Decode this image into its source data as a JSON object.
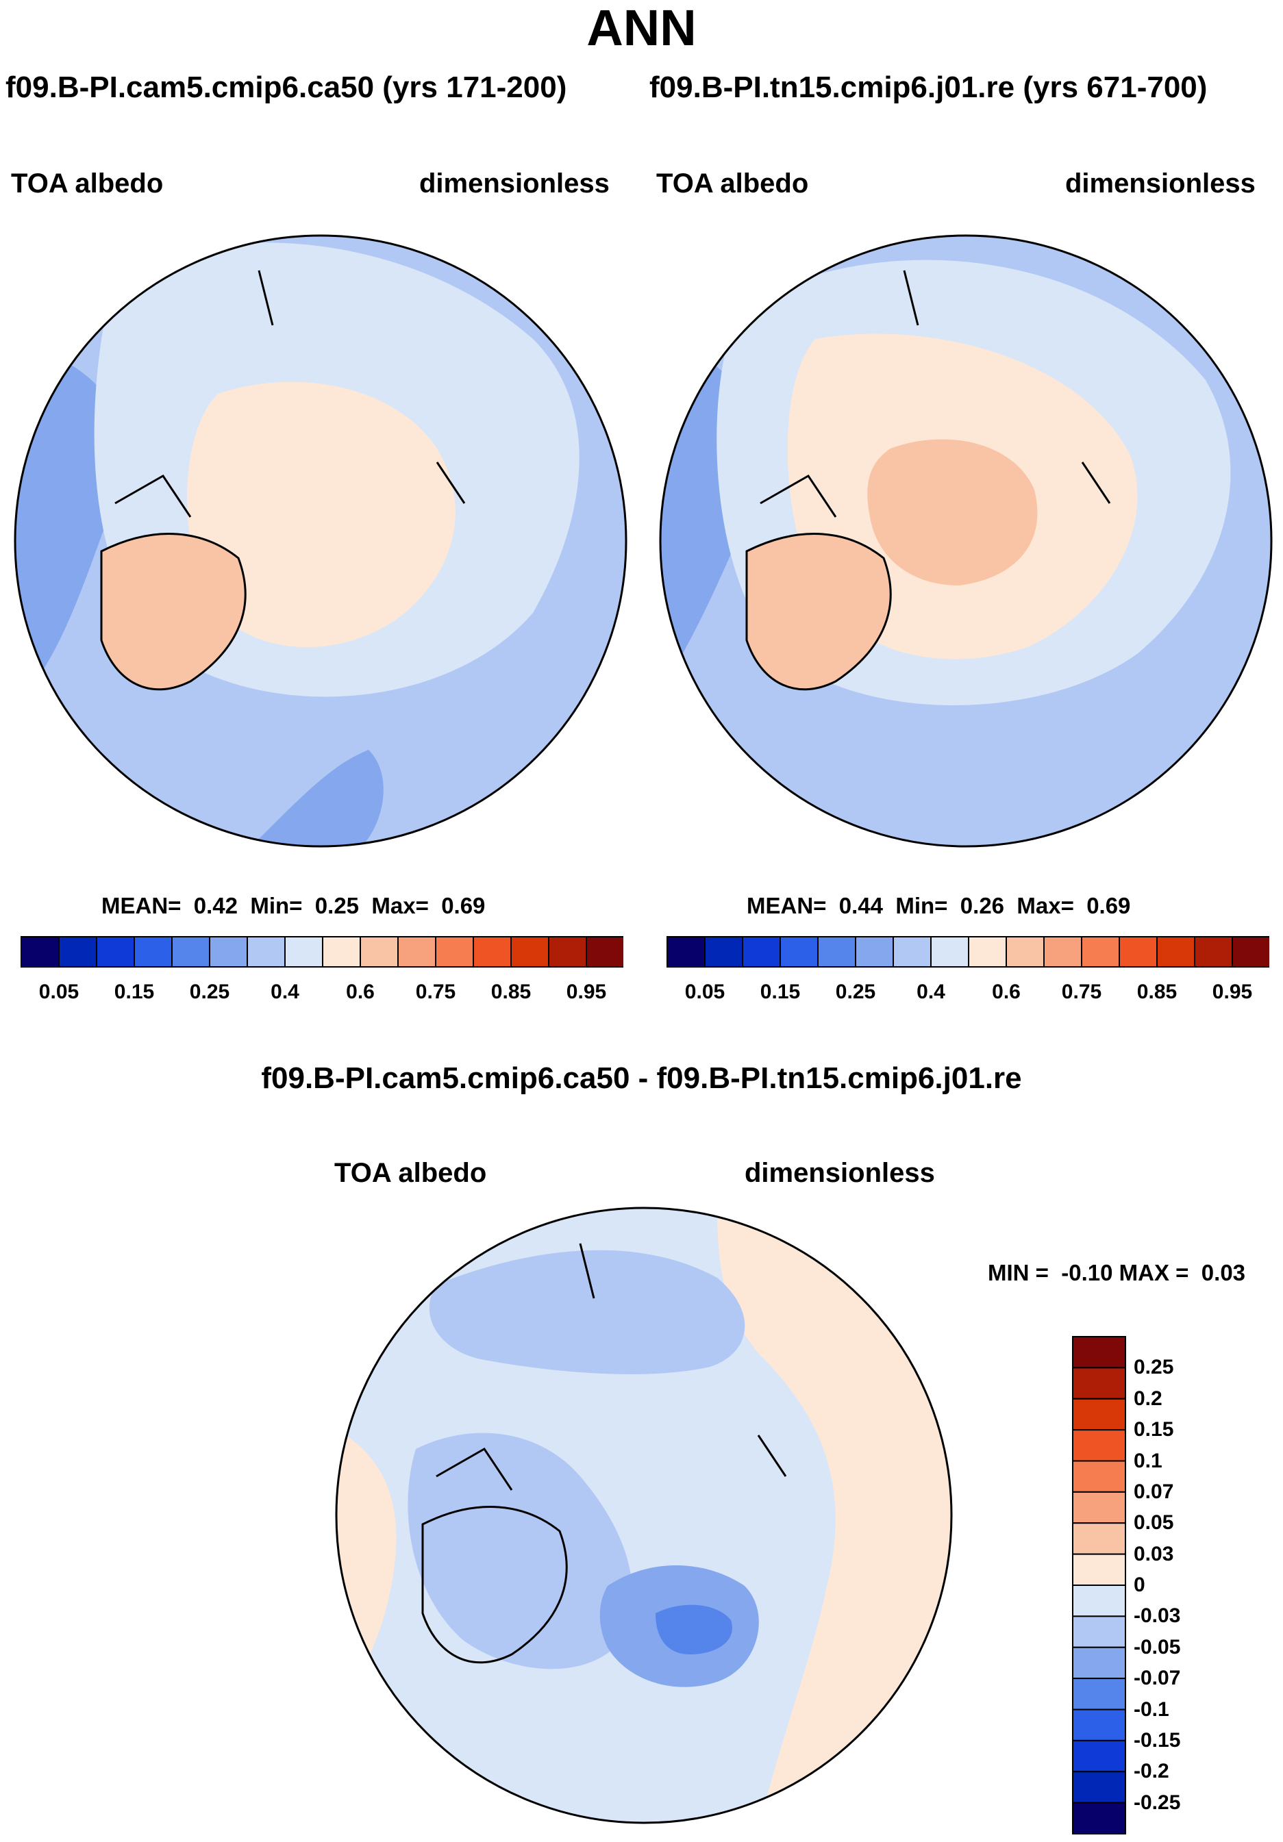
{
  "chart_data": [
    {
      "type": "contour-map",
      "projection": "north-polar-stereographic",
      "case_title": "f09.B-PI.cam5.cmip6.ca50 (yrs 171-200)",
      "left_label": "TOA albedo",
      "right_label": "dimensionless",
      "stats": {
        "mean_label": "MEAN=",
        "mean": "0.42",
        "min_label": "Min=",
        "min": "0.25",
        "max_label": "Max=",
        "max": "0.69"
      },
      "colorbar_ticks": [
        "0.05",
        "0.15",
        "0.25",
        "0.4",
        "0.6",
        "0.75",
        "0.85",
        "0.95"
      ]
    },
    {
      "type": "contour-map",
      "projection": "north-polar-stereographic",
      "case_title": "f09.B-PI.tn15.cmip6.j01.re (yrs 671-700)",
      "left_label": "TOA albedo",
      "right_label": "dimensionless",
      "stats": {
        "mean_label": "MEAN=",
        "mean": "0.44",
        "min_label": "Min=",
        "min": "0.26",
        "max_label": "Max=",
        "max": "0.69"
      },
      "colorbar_ticks": [
        "0.05",
        "0.15",
        "0.25",
        "0.4",
        "0.6",
        "0.75",
        "0.85",
        "0.95"
      ]
    },
    {
      "type": "contour-map",
      "projection": "north-polar-stereographic",
      "case_title": "f09.B-PI.cam5.cmip6.ca50 - f09.B-PI.tn15.cmip6.j01.re",
      "left_label": "TOA albedo",
      "right_label": "dimensionless",
      "stats": {
        "min_label": "MIN =",
        "min": "-0.10",
        "max_label": "MAX =",
        "max": "0.03"
      },
      "colorbar_ticks": [
        "0.25",
        "0.2",
        "0.15",
        "0.1",
        "0.07",
        "0.05",
        "0.03",
        "0",
        "-0.03",
        "-0.05",
        "-0.07",
        "-0.1",
        "-0.15",
        "-0.2",
        "-0.25"
      ]
    }
  ],
  "title": "ANN",
  "palettes": {
    "abs": [
      "#08006a",
      "#0027b6",
      "#0f3ad8",
      "#2d60e8",
      "#5585ea",
      "#84a7ee",
      "#b2c8f4",
      "#d8e6f8",
      "#fde8d8",
      "#f9c4a6",
      "#f7a17d",
      "#f67d4f",
      "#ef5424",
      "#d83808",
      "#ae1e06",
      "#7e0808"
    ],
    "diff": [
      "#7e0808",
      "#ae1e06",
      "#d83808",
      "#ef5424",
      "#f67d4f",
      "#f7a17d",
      "#f9c4a6",
      "#fde8d8",
      "#d8e6f8",
      "#b2c8f4",
      "#84a7ee",
      "#5585ea",
      "#2d60e8",
      "#0f3ad8",
      "#0027b6",
      "#08006a"
    ]
  }
}
